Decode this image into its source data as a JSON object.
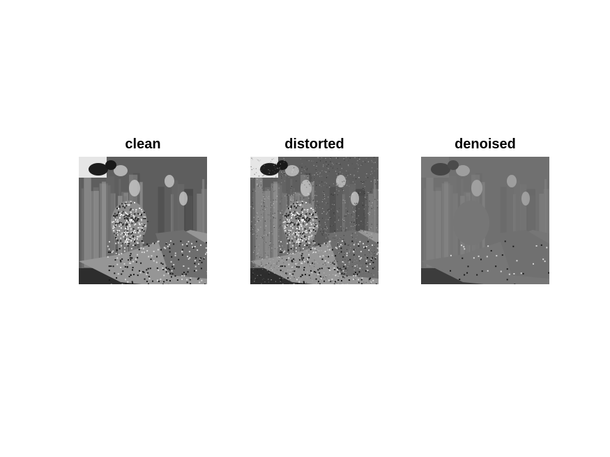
{
  "figure": {
    "background": "#ffffff",
    "panels": [
      {
        "title": "clean",
        "variant": "clean"
      },
      {
        "title": "distorted",
        "variant": "distorted"
      },
      {
        "title": "denoised",
        "variant": "denoised"
      }
    ]
  }
}
